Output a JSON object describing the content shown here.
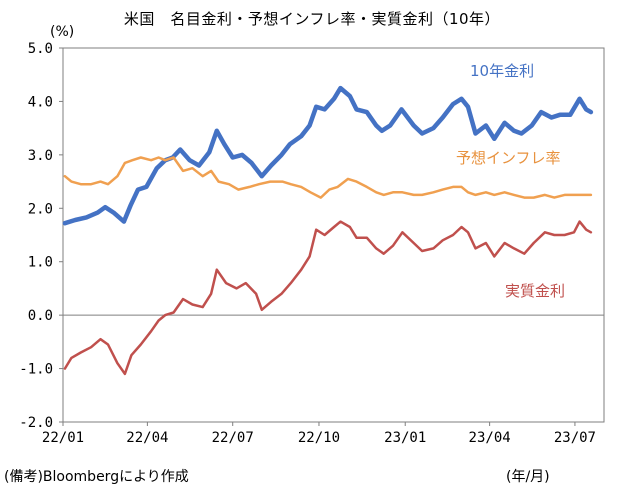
{
  "title": "米国　名目金利・予想インフレ率・実質金利（10年）",
  "unit": "(%)",
  "source": "(備考)Bloombergにより作成",
  "x_unit": "(年/月)",
  "chart_data": {
    "type": "line",
    "title": "米国　名目金利・予想インフレ率・実質金利（10年）",
    "ylabel": "(%)",
    "xlabel": "(年/月)",
    "ylim": [
      -2.0,
      5.0
    ],
    "yticks": [
      "5.0",
      "4.0",
      "3.0",
      "2.0",
      "1.0",
      "0.0",
      "-1.0",
      "-2.0"
    ],
    "xticks": [
      "22/01",
      "22/04",
      "22/07",
      "22/10",
      "23/01",
      "23/04",
      "23/07"
    ],
    "grid": false,
    "x_start": "2022-01",
    "x_end": "2023-08",
    "series": [
      {
        "name": "10年金利",
        "color": "#4472C4",
        "label_color": "#4472C4",
        "points": [
          [
            "2022-01-03",
            1.72
          ],
          [
            "2022-01-14",
            1.78
          ],
          [
            "2022-01-26",
            1.83
          ],
          [
            "2022-02-07",
            1.92
          ],
          [
            "2022-02-15",
            2.02
          ],
          [
            "2022-02-24",
            1.92
          ],
          [
            "2022-03-07",
            1.75
          ],
          [
            "2022-03-14",
            2.05
          ],
          [
            "2022-03-22",
            2.35
          ],
          [
            "2022-03-31",
            2.4
          ],
          [
            "2022-04-11",
            2.75
          ],
          [
            "2022-04-20",
            2.9
          ],
          [
            "2022-04-28",
            2.95
          ],
          [
            "2022-05-06",
            3.1
          ],
          [
            "2022-05-16",
            2.9
          ],
          [
            "2022-05-26",
            2.8
          ],
          [
            "2022-06-06",
            3.05
          ],
          [
            "2022-06-14",
            3.45
          ],
          [
            "2022-06-22",
            3.2
          ],
          [
            "2022-07-01",
            2.95
          ],
          [
            "2022-07-11",
            3.0
          ],
          [
            "2022-07-21",
            2.85
          ],
          [
            "2022-08-01",
            2.6
          ],
          [
            "2022-08-11",
            2.8
          ],
          [
            "2022-08-22",
            3.0
          ],
          [
            "2022-08-31",
            3.2
          ],
          [
            "2022-09-12",
            3.35
          ],
          [
            "2022-09-21",
            3.55
          ],
          [
            "2022-09-28",
            3.9
          ],
          [
            "2022-10-07",
            3.85
          ],
          [
            "2022-10-17",
            4.05
          ],
          [
            "2022-10-24",
            4.25
          ],
          [
            "2022-11-03",
            4.1
          ],
          [
            "2022-11-10",
            3.85
          ],
          [
            "2022-11-21",
            3.8
          ],
          [
            "2022-12-01",
            3.55
          ],
          [
            "2022-12-07",
            3.45
          ],
          [
            "2022-12-16",
            3.55
          ],
          [
            "2022-12-28",
            3.85
          ],
          [
            "2023-01-10",
            3.55
          ],
          [
            "2023-01-19",
            3.4
          ],
          [
            "2023-01-31",
            3.5
          ],
          [
            "2023-02-10",
            3.7
          ],
          [
            "2023-02-21",
            3.95
          ],
          [
            "2023-03-02",
            4.05
          ],
          [
            "2023-03-09",
            3.9
          ],
          [
            "2023-03-17",
            3.4
          ],
          [
            "2023-03-28",
            3.55
          ],
          [
            "2023-04-06",
            3.3
          ],
          [
            "2023-04-17",
            3.6
          ],
          [
            "2023-04-27",
            3.45
          ],
          [
            "2023-05-05",
            3.4
          ],
          [
            "2023-05-16",
            3.55
          ],
          [
            "2023-05-26",
            3.8
          ],
          [
            "2023-06-06",
            3.7
          ],
          [
            "2023-06-15",
            3.75
          ],
          [
            "2023-06-26",
            3.75
          ],
          [
            "2023-07-06",
            4.05
          ],
          [
            "2023-07-13",
            3.85
          ],
          [
            "2023-07-18",
            3.8
          ]
        ]
      },
      {
        "name": "予想インフレ率",
        "color": "#F0A050",
        "label_color": "#E8923E",
        "points": [
          [
            "2022-01-03",
            2.6
          ],
          [
            "2022-01-10",
            2.5
          ],
          [
            "2022-01-20",
            2.45
          ],
          [
            "2022-01-31",
            2.45
          ],
          [
            "2022-02-10",
            2.5
          ],
          [
            "2022-02-18",
            2.45
          ],
          [
            "2022-02-28",
            2.6
          ],
          [
            "2022-03-08",
            2.85
          ],
          [
            "2022-03-16",
            2.9
          ],
          [
            "2022-03-25",
            2.95
          ],
          [
            "2022-04-05",
            2.9
          ],
          [
            "2022-04-13",
            2.95
          ],
          [
            "2022-04-20",
            2.9
          ],
          [
            "2022-04-29",
            2.95
          ],
          [
            "2022-05-09",
            2.7
          ],
          [
            "2022-05-19",
            2.75
          ],
          [
            "2022-05-30",
            2.6
          ],
          [
            "2022-06-08",
            2.7
          ],
          [
            "2022-06-16",
            2.5
          ],
          [
            "2022-06-27",
            2.45
          ],
          [
            "2022-07-07",
            2.35
          ],
          [
            "2022-07-19",
            2.4
          ],
          [
            "2022-07-29",
            2.45
          ],
          [
            "2022-08-10",
            2.5
          ],
          [
            "2022-08-23",
            2.5
          ],
          [
            "2022-09-01",
            2.45
          ],
          [
            "2022-09-12",
            2.4
          ],
          [
            "2022-09-22",
            2.3
          ],
          [
            "2022-10-03",
            2.2
          ],
          [
            "2022-10-12",
            2.35
          ],
          [
            "2022-10-21",
            2.4
          ],
          [
            "2022-11-01",
            2.55
          ],
          [
            "2022-11-10",
            2.5
          ],
          [
            "2022-11-21",
            2.4
          ],
          [
            "2022-12-01",
            2.3
          ],
          [
            "2022-12-09",
            2.25
          ],
          [
            "2022-12-19",
            2.3
          ],
          [
            "2022-12-29",
            2.3
          ],
          [
            "2023-01-10",
            2.25
          ],
          [
            "2023-01-19",
            2.25
          ],
          [
            "2023-01-31",
            2.3
          ],
          [
            "2023-02-10",
            2.35
          ],
          [
            "2023-02-21",
            2.4
          ],
          [
            "2023-03-02",
            2.4
          ],
          [
            "2023-03-09",
            2.3
          ],
          [
            "2023-03-17",
            2.25
          ],
          [
            "2023-03-28",
            2.3
          ],
          [
            "2023-04-06",
            2.25
          ],
          [
            "2023-04-17",
            2.3
          ],
          [
            "2023-04-27",
            2.25
          ],
          [
            "2023-05-08",
            2.2
          ],
          [
            "2023-05-18",
            2.2
          ],
          [
            "2023-05-30",
            2.25
          ],
          [
            "2023-06-09",
            2.2
          ],
          [
            "2023-06-20",
            2.25
          ],
          [
            "2023-06-30",
            2.25
          ],
          [
            "2023-07-10",
            2.25
          ],
          [
            "2023-07-18",
            2.25
          ]
        ]
      },
      {
        "name": "実質金利",
        "color": "#C0504D",
        "label_color": "#C0504D",
        "points": [
          [
            "2022-01-03",
            -1.0
          ],
          [
            "2022-01-10",
            -0.8
          ],
          [
            "2022-01-20",
            -0.7
          ],
          [
            "2022-01-31",
            -0.6
          ],
          [
            "2022-02-10",
            -0.45
          ],
          [
            "2022-02-18",
            -0.55
          ],
          [
            "2022-02-28",
            -0.9
          ],
          [
            "2022-03-08",
            -1.1
          ],
          [
            "2022-03-15",
            -0.75
          ],
          [
            "2022-03-25",
            -0.55
          ],
          [
            "2022-04-05",
            -0.3
          ],
          [
            "2022-04-13",
            -0.1
          ],
          [
            "2022-04-20",
            0.0
          ],
          [
            "2022-04-29",
            0.05
          ],
          [
            "2022-05-09",
            0.3
          ],
          [
            "2022-05-19",
            0.2
          ],
          [
            "2022-05-30",
            0.15
          ],
          [
            "2022-06-08",
            0.4
          ],
          [
            "2022-06-14",
            0.85
          ],
          [
            "2022-06-24",
            0.6
          ],
          [
            "2022-07-05",
            0.5
          ],
          [
            "2022-07-15",
            0.6
          ],
          [
            "2022-07-26",
            0.4
          ],
          [
            "2022-08-01",
            0.1
          ],
          [
            "2022-08-11",
            0.25
          ],
          [
            "2022-08-22",
            0.4
          ],
          [
            "2022-09-01",
            0.6
          ],
          [
            "2022-09-12",
            0.85
          ],
          [
            "2022-09-21",
            1.1
          ],
          [
            "2022-09-28",
            1.6
          ],
          [
            "2022-10-07",
            1.5
          ],
          [
            "2022-10-17",
            1.65
          ],
          [
            "2022-10-24",
            1.75
          ],
          [
            "2022-11-03",
            1.65
          ],
          [
            "2022-11-10",
            1.45
          ],
          [
            "2022-11-21",
            1.45
          ],
          [
            "2022-12-01",
            1.25
          ],
          [
            "2022-12-09",
            1.15
          ],
          [
            "2022-12-19",
            1.3
          ],
          [
            "2022-12-29",
            1.55
          ],
          [
            "2023-01-10",
            1.35
          ],
          [
            "2023-01-19",
            1.2
          ],
          [
            "2023-01-31",
            1.25
          ],
          [
            "2023-02-10",
            1.4
          ],
          [
            "2023-02-21",
            1.5
          ],
          [
            "2023-03-02",
            1.65
          ],
          [
            "2023-03-09",
            1.55
          ],
          [
            "2023-03-17",
            1.25
          ],
          [
            "2023-03-28",
            1.35
          ],
          [
            "2023-04-06",
            1.1
          ],
          [
            "2023-04-17",
            1.35
          ],
          [
            "2023-04-27",
            1.25
          ],
          [
            "2023-05-08",
            1.15
          ],
          [
            "2023-05-18",
            1.35
          ],
          [
            "2023-05-30",
            1.55
          ],
          [
            "2023-06-09",
            1.5
          ],
          [
            "2023-06-20",
            1.5
          ],
          [
            "2023-06-30",
            1.55
          ],
          [
            "2023-07-06",
            1.75
          ],
          [
            "2023-07-13",
            1.6
          ],
          [
            "2023-07-18",
            1.55
          ]
        ]
      }
    ]
  }
}
